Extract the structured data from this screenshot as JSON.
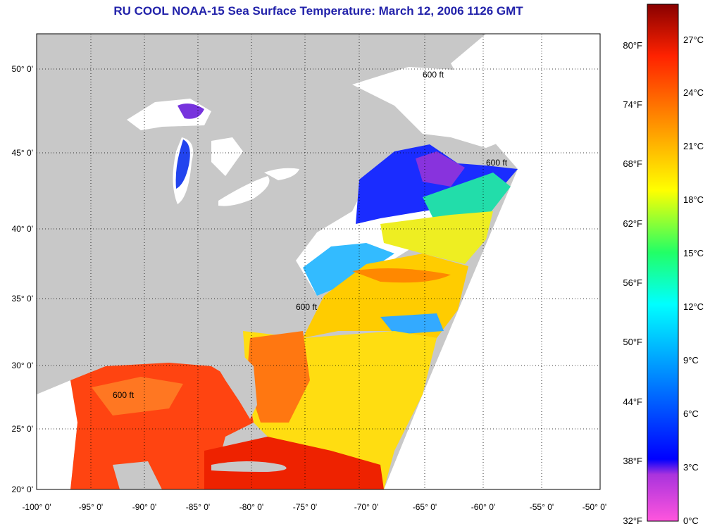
{
  "title": "RU COOL  NOAA-15  Sea Surface Temperature:  March 12, 2006 1126 GMT",
  "map": {
    "x_ticks": [
      "-100° 0'",
      "-95° 0'",
      "-90° 0'",
      "-85° 0'",
      "-80° 0'",
      "-75° 0'",
      "-70° 0'",
      "-65° 0'",
      "-60° 0'",
      "-55° 0'",
      "-50° 0'"
    ],
    "y_ticks": [
      "50° 0'",
      "45° 0'",
      "40° 0'",
      "35° 0'",
      "30° 0'",
      "25° 0'",
      "20° 0'"
    ],
    "contour_label": "600 ft",
    "colors": {
      "land": "#c8c8c8",
      "frame": "#000000",
      "title": "#2222aa"
    }
  },
  "colorbar": {
    "fahrenheit_labels": [
      "80°F",
      "74°F",
      "68°F",
      "62°F",
      "56°F",
      "50°F",
      "44°F",
      "38°F",
      "32°F"
    ],
    "celsius_labels": [
      "27°C",
      "24°C",
      "21°C",
      "18°C",
      "15°C",
      "12°C",
      "9°C",
      "6°C",
      "3°C",
      "0°C"
    ],
    "colors": [
      "#ff44cc",
      "#9933dd",
      "#0000ff",
      "#0088ff",
      "#00ffff",
      "#00ff44",
      "#ffff00",
      "#ff8800",
      "#ff2200",
      "#880000"
    ]
  }
}
